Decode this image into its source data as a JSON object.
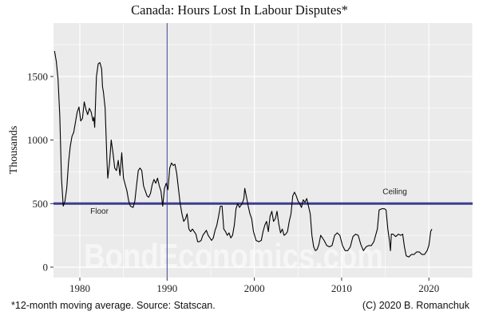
{
  "chart_data": {
    "type": "line",
    "title": "Canada: Hours Lost In Labour Disputes*",
    "xlabel": "",
    "ylabel": "Thousands",
    "xlim": [
      1977.0,
      2025.0
    ],
    "ylim": [
      -60,
      1830
    ],
    "x_ticks": [
      1980,
      1990,
      2000,
      2010,
      2020
    ],
    "y_ticks": [
      0,
      500,
      1000,
      1500
    ],
    "grid": true,
    "legend": null,
    "series": [
      {
        "name": "Hours lost in labour disputes (12-month moving average, thousands)",
        "color": "#000000",
        "points": [
          [
            1977.1,
            1700
          ],
          [
            1977.3,
            1620
          ],
          [
            1977.5,
            1480
          ],
          [
            1977.7,
            1190
          ],
          [
            1977.9,
            700
          ],
          [
            1978.1,
            480
          ],
          [
            1978.3,
            520
          ],
          [
            1978.5,
            620
          ],
          [
            1978.7,
            820
          ],
          [
            1978.9,
            950
          ],
          [
            1979.1,
            1030
          ],
          [
            1979.3,
            1060
          ],
          [
            1979.5,
            1140
          ],
          [
            1979.7,
            1220
          ],
          [
            1979.9,
            1260
          ],
          [
            1980.1,
            1150
          ],
          [
            1980.3,
            1170
          ],
          [
            1980.5,
            1300
          ],
          [
            1980.7,
            1240
          ],
          [
            1980.9,
            1200
          ],
          [
            1981.1,
            1250
          ],
          [
            1981.3,
            1220
          ],
          [
            1981.5,
            1150
          ],
          [
            1981.6,
            1180
          ],
          [
            1981.7,
            1100
          ],
          [
            1981.9,
            1500
          ],
          [
            1982.1,
            1600
          ],
          [
            1982.3,
            1610
          ],
          [
            1982.5,
            1560
          ],
          [
            1982.6,
            1420
          ],
          [
            1982.7,
            1380
          ],
          [
            1982.9,
            1250
          ],
          [
            1983.1,
            850
          ],
          [
            1983.2,
            700
          ],
          [
            1983.4,
            820
          ],
          [
            1983.6,
            1000
          ],
          [
            1983.8,
            900
          ],
          [
            1984.0,
            780
          ],
          [
            1984.2,
            760
          ],
          [
            1984.4,
            840
          ],
          [
            1984.6,
            720
          ],
          [
            1984.8,
            900
          ],
          [
            1985.0,
            700
          ],
          [
            1985.2,
            650
          ],
          [
            1985.4,
            600
          ],
          [
            1985.6,
            520
          ],
          [
            1985.8,
            480
          ],
          [
            1986.1,
            470
          ],
          [
            1986.3,
            520
          ],
          [
            1986.5,
            640
          ],
          [
            1986.7,
            760
          ],
          [
            1986.9,
            780
          ],
          [
            1987.1,
            760
          ],
          [
            1987.3,
            640
          ],
          [
            1987.5,
            600
          ],
          [
            1987.7,
            560
          ],
          [
            1987.9,
            550
          ],
          [
            1988.1,
            580
          ],
          [
            1988.3,
            650
          ],
          [
            1988.5,
            690
          ],
          [
            1988.7,
            660
          ],
          [
            1988.9,
            700
          ],
          [
            1989.1,
            640
          ],
          [
            1989.3,
            600
          ],
          [
            1989.5,
            480
          ],
          [
            1989.7,
            620
          ],
          [
            1989.9,
            660
          ],
          [
            1990.1,
            610
          ],
          [
            1990.3,
            780
          ],
          [
            1990.5,
            820
          ],
          [
            1990.7,
            800
          ],
          [
            1990.9,
            810
          ],
          [
            1991.1,
            740
          ],
          [
            1991.3,
            620
          ],
          [
            1991.5,
            500
          ],
          [
            1991.7,
            420
          ],
          [
            1991.9,
            360
          ],
          [
            1992.1,
            380
          ],
          [
            1992.3,
            420
          ],
          [
            1992.5,
            300
          ],
          [
            1992.7,
            280
          ],
          [
            1992.9,
            300
          ],
          [
            1993.1,
            280
          ],
          [
            1993.3,
            260
          ],
          [
            1993.5,
            200
          ],
          [
            1993.7,
            200
          ],
          [
            1993.9,
            210
          ],
          [
            1994.1,
            250
          ],
          [
            1994.3,
            270
          ],
          [
            1994.5,
            290
          ],
          [
            1994.7,
            250
          ],
          [
            1994.9,
            230
          ],
          [
            1995.1,
            210
          ],
          [
            1995.3,
            230
          ],
          [
            1995.5,
            290
          ],
          [
            1995.7,
            330
          ],
          [
            1995.9,
            400
          ],
          [
            1996.1,
            480
          ],
          [
            1996.3,
            480
          ],
          [
            1996.5,
            300
          ],
          [
            1996.7,
            280
          ],
          [
            1996.9,
            250
          ],
          [
            1997.1,
            270
          ],
          [
            1997.3,
            230
          ],
          [
            1997.5,
            250
          ],
          [
            1997.7,
            330
          ],
          [
            1997.9,
            460
          ],
          [
            1998.1,
            500
          ],
          [
            1998.3,
            470
          ],
          [
            1998.6,
            500
          ],
          [
            1998.8,
            540
          ],
          [
            1998.9,
            620
          ],
          [
            1999.1,
            550
          ],
          [
            1999.3,
            480
          ],
          [
            1999.5,
            420
          ],
          [
            1999.7,
            380
          ],
          [
            1999.9,
            280
          ],
          [
            2000.2,
            210
          ],
          [
            2000.5,
            200
          ],
          [
            2000.8,
            210
          ],
          [
            2001.0,
            280
          ],
          [
            2001.2,
            330
          ],
          [
            2001.4,
            360
          ],
          [
            2001.6,
            280
          ],
          [
            2001.8,
            400
          ],
          [
            2002.0,
            440
          ],
          [
            2002.2,
            360
          ],
          [
            2002.4,
            380
          ],
          [
            2002.6,
            440
          ],
          [
            2002.8,
            340
          ],
          [
            2003.0,
            270
          ],
          [
            2003.2,
            300
          ],
          [
            2003.4,
            250
          ],
          [
            2003.6,
            260
          ],
          [
            2003.8,
            280
          ],
          [
            2004.0,
            360
          ],
          [
            2004.2,
            420
          ],
          [
            2004.4,
            560
          ],
          [
            2004.6,
            590
          ],
          [
            2004.8,
            560
          ],
          [
            2005.0,
            520
          ],
          [
            2005.2,
            500
          ],
          [
            2005.4,
            470
          ],
          [
            2005.6,
            530
          ],
          [
            2005.8,
            510
          ],
          [
            2006.0,
            540
          ],
          [
            2006.2,
            480
          ],
          [
            2006.4,
            420
          ],
          [
            2006.6,
            250
          ],
          [
            2006.8,
            160
          ],
          [
            2007.0,
            130
          ],
          [
            2007.2,
            140
          ],
          [
            2007.4,
            180
          ],
          [
            2007.6,
            250
          ],
          [
            2007.8,
            230
          ],
          [
            2008.0,
            210
          ],
          [
            2008.3,
            170
          ],
          [
            2008.6,
            160
          ],
          [
            2008.9,
            170
          ],
          [
            2009.2,
            250
          ],
          [
            2009.5,
            270
          ],
          [
            2009.8,
            250
          ],
          [
            2010.1,
            170
          ],
          [
            2010.4,
            130
          ],
          [
            2010.7,
            130
          ],
          [
            2011.0,
            160
          ],
          [
            2011.3,
            240
          ],
          [
            2011.6,
            260
          ],
          [
            2011.9,
            250
          ],
          [
            2012.2,
            180
          ],
          [
            2012.5,
            130
          ],
          [
            2012.8,
            160
          ],
          [
            2013.1,
            170
          ],
          [
            2013.4,
            170
          ],
          [
            2013.7,
            200
          ],
          [
            2013.9,
            250
          ],
          [
            2014.1,
            300
          ],
          [
            2014.3,
            450
          ],
          [
            2014.6,
            460
          ],
          [
            2014.9,
            460
          ],
          [
            2015.1,
            450
          ],
          [
            2015.3,
            300
          ],
          [
            2015.5,
            200
          ],
          [
            2015.6,
            130
          ],
          [
            2015.7,
            260
          ],
          [
            2015.9,
            260
          ],
          [
            2016.2,
            240
          ],
          [
            2016.5,
            260
          ],
          [
            2016.8,
            250
          ],
          [
            2017.0,
            260
          ],
          [
            2017.2,
            160
          ],
          [
            2017.4,
            90
          ],
          [
            2017.7,
            80
          ],
          [
            2018.0,
            100
          ],
          [
            2018.3,
            100
          ],
          [
            2018.6,
            120
          ],
          [
            2018.9,
            120
          ],
          [
            2019.2,
            100
          ],
          [
            2019.5,
            100
          ],
          [
            2019.8,
            130
          ],
          [
            2020.0,
            170
          ],
          [
            2020.1,
            220
          ],
          [
            2020.2,
            280
          ],
          [
            2020.35,
            300
          ]
        ]
      }
    ],
    "reference_lines": [
      {
        "orientation": "horizontal",
        "value": 500,
        "color": "#3d3d8f",
        "width": 3
      },
      {
        "orientation": "vertical",
        "value": 1990,
        "color": "#3d3d8f",
        "width": 1
      }
    ],
    "annotations": [
      {
        "text": "Floor",
        "x": 1981.2,
        "y": 420
      },
      {
        "text": "Ceiling",
        "x": 2014.7,
        "y": 575
      }
    ],
    "watermark": "BondEconomics.com"
  },
  "footer": {
    "note": "*12-month moving average. Source: Statscan.",
    "credit": "(C) 2020 B. Romanchuk"
  },
  "colors": {
    "panel_bg": "#ebebeb",
    "grid_major": "#ffffff",
    "line": "#000000",
    "reference": "#3d3d8f"
  }
}
